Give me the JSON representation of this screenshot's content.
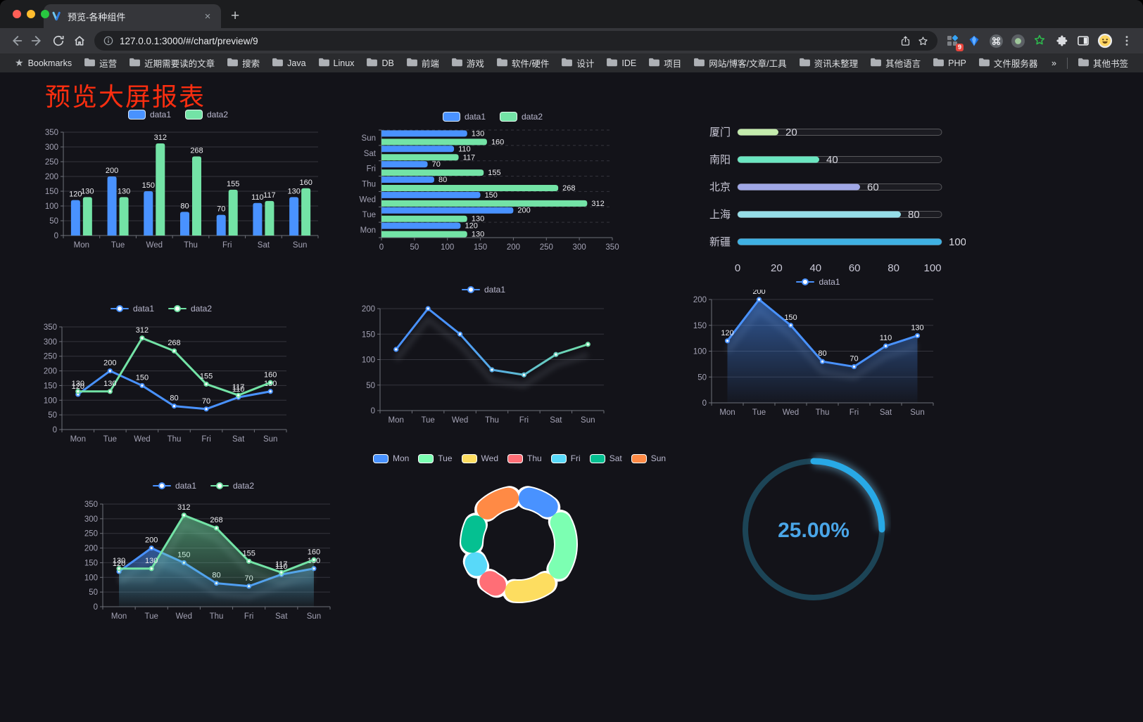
{
  "browser": {
    "tab": {
      "title": "预览-各种组件",
      "close_glyph": "×"
    },
    "new_tab_label": "+",
    "url": "127.0.0.1:3000/#/chart/preview/9",
    "extensions_badge": "9",
    "bookmarks": {
      "home_label": "Bookmarks",
      "home_glyph": "★",
      "folders": [
        "运营",
        "近期需要读的文章",
        "搜索",
        "Java",
        "Linux",
        "DB",
        "前端",
        "游戏",
        "软件/硬件",
        "设计",
        "IDE",
        "项目",
        "网站/博客/文章/工具",
        "资讯未整理",
        "其他语言",
        "PHP",
        "文件服务器"
      ],
      "overflow_glyph": "»",
      "other_label": "其他书签"
    }
  },
  "page": {
    "title": "预览大屏报表"
  },
  "colors": {
    "blue": "#4992ff",
    "green": "#73e3a6",
    "red_title": "#fb2e10"
  },
  "chart_data": [
    {
      "id": "bar-vertical",
      "type": "bar",
      "title": "",
      "categories": [
        "Mon",
        "Tue",
        "Wed",
        "Thu",
        "Fri",
        "Sat",
        "Sun"
      ],
      "series": [
        {
          "name": "data1",
          "color": "#4992ff",
          "values": [
            120,
            200,
            150,
            80,
            70,
            110,
            130
          ]
        },
        {
          "name": "data2",
          "color": "#73e3a6",
          "values": [
            130,
            130,
            312,
            268,
            155,
            117,
            160
          ]
        }
      ],
      "ylim": [
        0,
        350
      ],
      "ystep": 50,
      "value_labels": true,
      "legend": "bar",
      "grid": true
    },
    {
      "id": "bar-horizontal",
      "type": "bar-horizontal",
      "categories": [
        "Mon",
        "Tue",
        "Wed",
        "Thu",
        "Fri",
        "Sat",
        "Sun"
      ],
      "series": [
        {
          "name": "data1",
          "color": "#4992ff",
          "values": [
            120,
            200,
            150,
            80,
            70,
            110,
            130
          ]
        },
        {
          "name": "data2",
          "color": "#73e3a6",
          "values": [
            130,
            130,
            312,
            268,
            155,
            117,
            160
          ]
        }
      ],
      "xlim": [
        0,
        350
      ],
      "xstep": 50,
      "value_labels": true,
      "legend": "bar",
      "grid": true
    },
    {
      "id": "progress",
      "type": "progress",
      "xlim": [
        0,
        100
      ],
      "xticks": [
        0,
        20,
        40,
        60,
        80,
        100
      ],
      "items": [
        {
          "label": "厦门",
          "value": 20,
          "color": "#c4ebad"
        },
        {
          "label": "南阳",
          "value": 40,
          "color": "#6be6c1"
        },
        {
          "label": "北京",
          "value": 60,
          "color": "#a0a7e6"
        },
        {
          "label": "上海",
          "value": 80,
          "color": "#96dee8"
        },
        {
          "label": "新疆",
          "value": 100,
          "color": "#3fb1e3"
        }
      ]
    },
    {
      "id": "line-dual",
      "type": "line",
      "categories": [
        "Mon",
        "Tue",
        "Wed",
        "Thu",
        "Fri",
        "Sat",
        "Sun"
      ],
      "series": [
        {
          "name": "data1",
          "color": "#4992ff",
          "values": [
            120,
            200,
            150,
            80,
            70,
            110,
            130
          ]
        },
        {
          "name": "data2",
          "color": "#73e3a6",
          "values": [
            130,
            130,
            312,
            268,
            155,
            117,
            160
          ]
        }
      ],
      "ylim": [
        0,
        350
      ],
      "ystep": 50,
      "value_labels": true,
      "legend": "line",
      "grid": true
    },
    {
      "id": "line-gradient",
      "type": "line",
      "categories": [
        "Mon",
        "Tue",
        "Wed",
        "Thu",
        "Fri",
        "Sat",
        "Sun"
      ],
      "series": [
        {
          "name": "data1",
          "color": "#4992ff",
          "color_end": "#73e3a6",
          "values": [
            120,
            200,
            150,
            80,
            70,
            110,
            130
          ]
        }
      ],
      "ylim": [
        0,
        200
      ],
      "ystep": 50,
      "value_labels": false,
      "legend": "line",
      "shadow": true,
      "grid": true
    },
    {
      "id": "line-area",
      "type": "line",
      "area": true,
      "categories": [
        "Mon",
        "Tue",
        "Wed",
        "Thu",
        "Fri",
        "Sat",
        "Sun"
      ],
      "series": [
        {
          "name": "data1",
          "color": "#4992ff",
          "values": [
            120,
            200,
            150,
            80,
            70,
            110,
            130
          ]
        }
      ],
      "ylim": [
        0,
        200
      ],
      "ystep": 50,
      "value_labels": true,
      "legend": "line",
      "shadow": true,
      "grid": true
    },
    {
      "id": "area-dual",
      "type": "line",
      "area": true,
      "categories": [
        "Mon",
        "Tue",
        "Wed",
        "Thu",
        "Fri",
        "Sat",
        "Sun"
      ],
      "series": [
        {
          "name": "data1",
          "color": "#4992ff",
          "values": [
            120,
            200,
            150,
            80,
            70,
            110,
            130
          ]
        },
        {
          "name": "data2",
          "color": "#73e3a6",
          "values": [
            130,
            130,
            312,
            268,
            155,
            117,
            160
          ]
        }
      ],
      "ylim": [
        0,
        350
      ],
      "ystep": 50,
      "value_labels": true,
      "legend": "line",
      "shadow": true,
      "grid": true
    },
    {
      "id": "donut",
      "type": "pie",
      "legend": "pie",
      "categories": [
        "Mon",
        "Tue",
        "Wed",
        "Thu",
        "Fri",
        "Sat",
        "Sun"
      ],
      "values": [
        120,
        200,
        150,
        80,
        70,
        110,
        130
      ],
      "colors": [
        "#4992ff",
        "#7cffb2",
        "#fddd60",
        "#ff6e76",
        "#58d9f9",
        "#05c091",
        "#ff8a45"
      ]
    },
    {
      "id": "gauge",
      "type": "gauge",
      "value": 25,
      "max": 100,
      "label": "25.00%",
      "color": "#28a9e6",
      "track_color": "#1c4456"
    }
  ]
}
